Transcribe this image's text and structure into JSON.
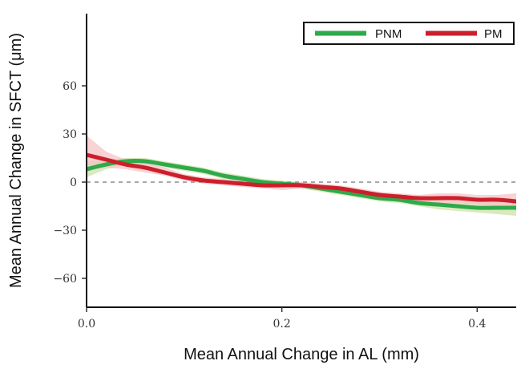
{
  "chart_data": {
    "type": "line",
    "title": "",
    "xlabel": "Mean Annual Change in AL (mm)",
    "ylabel": "Mean Annual Change in SFCT (μm)",
    "xlim": [
      0.0,
      0.44
    ],
    "ylim": [
      -78,
      105
    ],
    "x_ticks": [
      0.0,
      0.2,
      0.4
    ],
    "x_tick_labels": [
      "0.0",
      "0.2",
      "0.4"
    ],
    "y_ticks": [
      -60,
      -30,
      0,
      30,
      60
    ],
    "y_tick_labels": [
      "−60",
      "−30",
      "0",
      "30",
      "60"
    ],
    "reference_line": {
      "y": 0,
      "style": "dashed",
      "color": "#888888"
    },
    "legend": {
      "position": "top-right",
      "framed": true
    },
    "grid": false,
    "series": [
      {
        "name": "PNM",
        "color": "#2eaa4a",
        "band_color": "#cfe3a8",
        "x": [
          0.0,
          0.02,
          0.04,
          0.06,
          0.08,
          0.1,
          0.12,
          0.14,
          0.16,
          0.18,
          0.2,
          0.22,
          0.24,
          0.26,
          0.28,
          0.3,
          0.32,
          0.34,
          0.36,
          0.38,
          0.4,
          0.42,
          0.44
        ],
        "y": [
          8,
          11,
          13,
          13,
          11,
          9,
          7,
          4,
          2,
          0,
          -1,
          -2,
          -4,
          -6,
          -8,
          -10,
          -11,
          -13,
          -14,
          -15,
          -16,
          -16,
          -16
        ],
        "lower": [
          3,
          8,
          11,
          11,
          9,
          7,
          5,
          2,
          0,
          -2,
          -3,
          -4,
          -6,
          -8,
          -10,
          -12,
          -13,
          -15,
          -17,
          -18,
          -19,
          -20,
          -21
        ],
        "upper": [
          13,
          14,
          15,
          15,
          13,
          11,
          9,
          6,
          4,
          2,
          1,
          0,
          -2,
          -4,
          -6,
          -8,
          -9,
          -11,
          -11,
          -12,
          -13,
          -12,
          -11
        ]
      },
      {
        "name": "PM",
        "color": "#cc1f2b",
        "band_color": "#f6c3c6",
        "x": [
          0.0,
          0.02,
          0.04,
          0.06,
          0.08,
          0.1,
          0.12,
          0.14,
          0.16,
          0.18,
          0.2,
          0.22,
          0.24,
          0.26,
          0.28,
          0.3,
          0.32,
          0.34,
          0.36,
          0.38,
          0.4,
          0.42,
          0.44
        ],
        "y": [
          17,
          14,
          11,
          9,
          6,
          3,
          1,
          0,
          -1,
          -2,
          -2,
          -2,
          -3,
          -4,
          -6,
          -8,
          -9,
          -10,
          -10,
          -10,
          -11,
          -11,
          -12
        ],
        "lower": [
          7,
          9,
          8,
          6,
          4,
          1,
          -1,
          -2,
          -3,
          -4,
          -5,
          -4,
          -5,
          -6,
          -8,
          -10,
          -11,
          -12,
          -13,
          -13,
          -14,
          -15,
          -17
        ],
        "upper": [
          29,
          19,
          14,
          12,
          9,
          5,
          3,
          2,
          1,
          0,
          0,
          0,
          -1,
          -2,
          -4,
          -6,
          -7,
          -8,
          -7,
          -7,
          -8,
          -8,
          -7
        ]
      }
    ]
  }
}
